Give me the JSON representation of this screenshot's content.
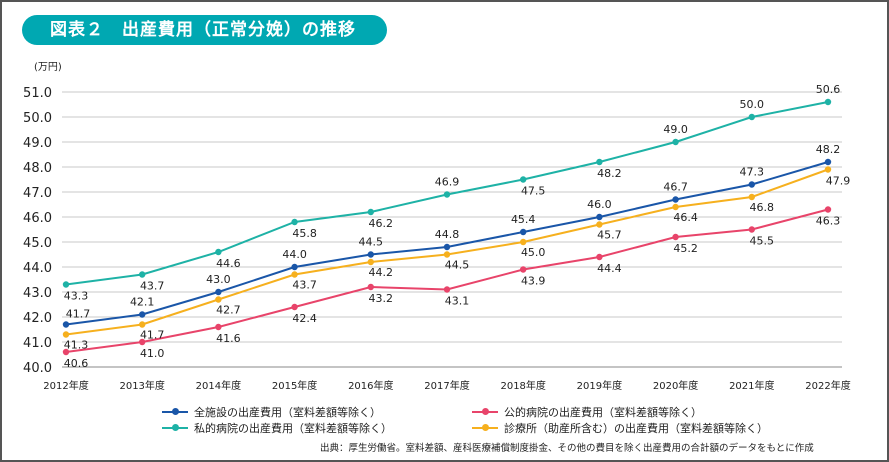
{
  "title": "図表２　出産費用（正常分娩）の推移",
  "chart_data": {
    "type": "line",
    "title": "図表２　出産費用（正常分娩）の推移",
    "ylabel": "(万円)",
    "ylim": [
      40.0,
      51.0
    ],
    "yticks": [
      "40.0",
      "41.0",
      "42.0",
      "43.0",
      "44.0",
      "45.0",
      "46.0",
      "47.0",
      "48.0",
      "49.0",
      "50.0",
      "51.0"
    ],
    "grid": true,
    "legend": "bottom",
    "categories": [
      "2012年度",
      "2013年度",
      "2014年度",
      "2015年度",
      "2016年度",
      "2017年度",
      "2018年度",
      "2019年度",
      "2020年度",
      "2021年度",
      "2022年度"
    ],
    "series": [
      {
        "name": "全施設の出産費用（室料差額等除く）",
        "color": "#1a56a8",
        "values": [
          41.7,
          42.1,
          43.0,
          44.0,
          44.5,
          44.8,
          45.4,
          46.0,
          46.7,
          47.3,
          48.2
        ]
      },
      {
        "name": "公的病院の出産費用（室料差額等除く）",
        "color": "#e8446a",
        "values": [
          40.6,
          41.0,
          41.6,
          42.4,
          43.2,
          43.1,
          43.9,
          44.4,
          45.2,
          45.5,
          46.3
        ]
      },
      {
        "name": "私的病院の出産費用（室料差額等除く）",
        "color": "#1eb2a6",
        "values": [
          43.3,
          43.7,
          44.6,
          45.8,
          46.2,
          46.9,
          47.5,
          48.2,
          49.0,
          50.0,
          50.6
        ]
      },
      {
        "name": "診療所（助産所含む）の出産費用（室料差額等除く）",
        "color": "#f6b01e",
        "values": [
          41.3,
          41.7,
          42.7,
          43.7,
          44.2,
          44.5,
          45.0,
          45.7,
          46.4,
          46.8,
          47.9
        ]
      }
    ]
  },
  "source": "出典：厚生労働省。室料差額、産科医療補償制度掛金、その他の費目を除く出産費用の合計額のデータをもとに作成"
}
